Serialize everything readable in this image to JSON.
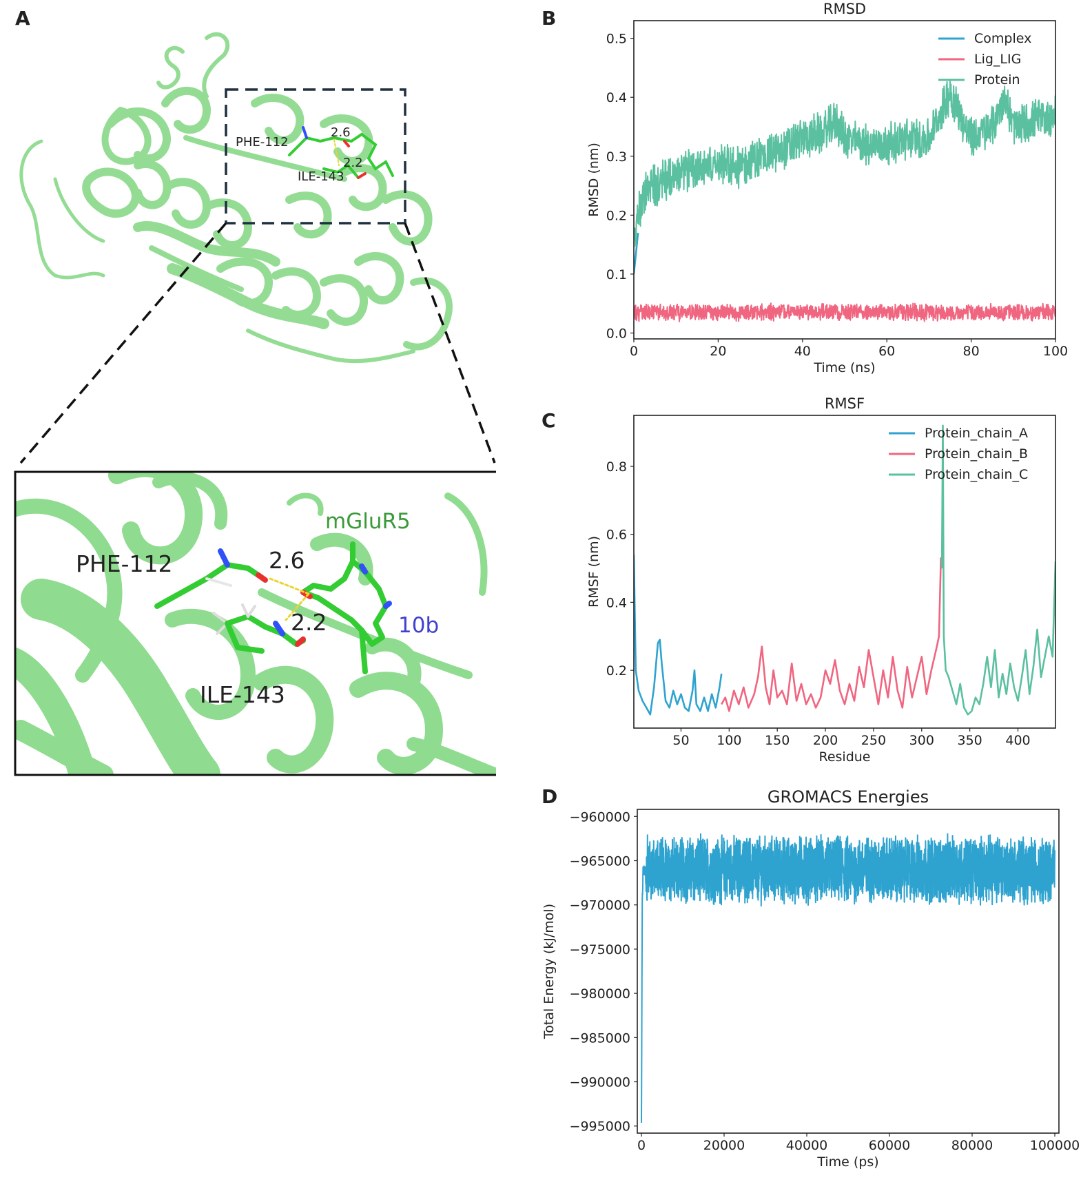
{
  "panels": {
    "a": "A",
    "b": "B",
    "c": "C",
    "d": "D"
  },
  "structure": {
    "overview_labels": {
      "res1": "PHE-112",
      "res2": "ILE-143",
      "d1": "2.6",
      "d2": "2.2"
    },
    "zoom_labels": {
      "res1": "PHE-112",
      "res2": "ILE-143",
      "d1": "2.6",
      "d2": "2.2",
      "protein": "mGluR5",
      "ligand": "10b"
    },
    "colors": {
      "cartoon": "#8fdb8f",
      "stick": "#33cc33",
      "nitrogen": "#3050f8",
      "oxygen": "#e8312f",
      "hbond": "#e8d630",
      "protein_label": "#3a9a3a",
      "ligand_label": "#4040d0"
    }
  },
  "chart_data": [
    {
      "id": "rmsd",
      "type": "line",
      "title": "RMSD",
      "xlabel": "Time (ns)",
      "ylabel": "RMSD (nm)",
      "xlim": [
        0,
        100
      ],
      "ylim": [
        -0.01,
        0.53
      ],
      "xticks": [
        0,
        20,
        40,
        60,
        80,
        100
      ],
      "yticks": [
        0.0,
        0.1,
        0.2,
        0.3,
        0.4,
        0.5
      ],
      "xtick_labels": [
        "0",
        "20",
        "40",
        "60",
        "80",
        "100"
      ],
      "ytick_labels": [
        "0.0",
        "0.1",
        "0.2",
        "0.3",
        "0.4",
        "0.5"
      ],
      "legend_position": "top-right",
      "legend": [
        {
          "name": "Complex",
          "color": "#2ea3cf"
        },
        {
          "name": "Lig_LIG",
          "color": "#f0657f"
        },
        {
          "name": "Protein",
          "color": "#5bc0a0"
        }
      ],
      "series": [
        {
          "name": "Complex",
          "color": "#2ea3cf",
          "x": [
            0,
            1
          ],
          "y": [
            0.1,
            0.17
          ]
        },
        {
          "name": "Protein",
          "color": "#5bc0a0",
          "x": [
            0,
            1,
            3,
            5,
            8,
            10,
            15,
            20,
            25,
            30,
            35,
            40,
            45,
            48,
            50,
            55,
            60,
            65,
            70,
            72,
            75,
            78,
            80,
            85,
            88,
            90,
            95,
            100
          ],
          "y": [
            0.15,
            0.2,
            0.24,
            0.25,
            0.26,
            0.27,
            0.28,
            0.29,
            0.28,
            0.3,
            0.31,
            0.33,
            0.34,
            0.36,
            0.33,
            0.32,
            0.32,
            0.33,
            0.33,
            0.36,
            0.41,
            0.36,
            0.33,
            0.35,
            0.4,
            0.35,
            0.36,
            0.37
          ],
          "noise": 0.03
        },
        {
          "name": "Lig_LIG",
          "color": "#f0657f",
          "x": [
            0,
            25,
            50,
            75,
            100
          ],
          "y": [
            0.035,
            0.035,
            0.036,
            0.035,
            0.035
          ],
          "noise": 0.012
        }
      ]
    },
    {
      "id": "rmsf",
      "type": "line",
      "title": "RMSF",
      "xlabel": "Residue",
      "ylabel": "RMSF (nm)",
      "xlim": [
        1,
        439
      ],
      "ylim": [
        0.03,
        0.95
      ],
      "xticks": [
        50,
        100,
        150,
        200,
        250,
        300,
        350,
        400
      ],
      "yticks": [
        0.2,
        0.4,
        0.6,
        0.8
      ],
      "xtick_labels": [
        "50",
        "100",
        "150",
        "200",
        "250",
        "300",
        "350",
        "400"
      ],
      "ytick_labels": [
        "0.2",
        "0.4",
        "0.6",
        "0.8"
      ],
      "legend_position": "top-right",
      "legend": [
        {
          "name": "Protein_chain_A",
          "color": "#2ea3cf"
        },
        {
          "name": "Protein_chain_B",
          "color": "#f0657f"
        },
        {
          "name": "Protein_chain_C",
          "color": "#5bc0a0"
        }
      ],
      "series": [
        {
          "name": "Protein_chain_A",
          "color": "#2ea3cf",
          "x": [
            1,
            3,
            6,
            10,
            14,
            18,
            22,
            26,
            28,
            30,
            34,
            38,
            42,
            46,
            50,
            54,
            58,
            62,
            64,
            66,
            70,
            74,
            78,
            82,
            86,
            90,
            92
          ],
          "y": [
            0.54,
            0.2,
            0.14,
            0.11,
            0.09,
            0.07,
            0.15,
            0.28,
            0.29,
            0.22,
            0.11,
            0.09,
            0.14,
            0.1,
            0.13,
            0.09,
            0.08,
            0.14,
            0.2,
            0.1,
            0.08,
            0.12,
            0.08,
            0.13,
            0.09,
            0.15,
            0.19
          ]
        },
        {
          "name": "Protein_chain_B",
          "color": "#f0657f",
          "x": [
            92,
            96,
            100,
            105,
            110,
            115,
            120,
            126,
            130,
            134,
            138,
            142,
            146,
            150,
            155,
            160,
            165,
            170,
            175,
            180,
            185,
            190,
            195,
            200,
            205,
            210,
            215,
            220,
            225,
            230,
            235,
            240,
            245,
            250,
            255,
            260,
            265,
            270,
            275,
            280,
            285,
            290,
            295,
            300,
            305,
            310,
            315,
            318,
            320,
            321
          ],
          "y": [
            0.1,
            0.12,
            0.08,
            0.14,
            0.1,
            0.15,
            0.09,
            0.13,
            0.18,
            0.27,
            0.15,
            0.1,
            0.2,
            0.12,
            0.14,
            0.1,
            0.22,
            0.11,
            0.16,
            0.1,
            0.13,
            0.09,
            0.12,
            0.2,
            0.16,
            0.23,
            0.14,
            0.1,
            0.16,
            0.11,
            0.21,
            0.15,
            0.26,
            0.18,
            0.1,
            0.2,
            0.12,
            0.24,
            0.14,
            0.09,
            0.21,
            0.12,
            0.18,
            0.24,
            0.13,
            0.2,
            0.26,
            0.3,
            0.53,
            0.5
          ]
        },
        {
          "name": "Protein_chain_C",
          "color": "#5bc0a0",
          "x": [
            321,
            322,
            323,
            325,
            328,
            332,
            336,
            340,
            344,
            348,
            352,
            356,
            360,
            364,
            368,
            372,
            376,
            380,
            384,
            388,
            392,
            396,
            400,
            404,
            408,
            412,
            416,
            420,
            424,
            428,
            432,
            436,
            439
          ],
          "y": [
            0.5,
            0.92,
            0.3,
            0.2,
            0.18,
            0.14,
            0.1,
            0.16,
            0.09,
            0.07,
            0.08,
            0.12,
            0.1,
            0.16,
            0.24,
            0.15,
            0.26,
            0.12,
            0.19,
            0.13,
            0.22,
            0.15,
            0.11,
            0.18,
            0.26,
            0.13,
            0.21,
            0.32,
            0.18,
            0.24,
            0.3,
            0.24,
            0.52
          ]
        }
      ]
    },
    {
      "id": "energy",
      "type": "line",
      "title": "GROMACS Energies",
      "xlabel": "Time (ps)",
      "ylabel": "Total Energy (kJ/mol)",
      "xlim": [
        -1000,
        101000
      ],
      "ylim": [
        -995800,
        -959200
      ],
      "xticks": [
        0,
        20000,
        40000,
        60000,
        80000,
        100000
      ],
      "yticks": [
        -960000,
        -965000,
        -970000,
        -975000,
        -980000,
        -985000,
        -990000,
        -995000
      ],
      "xtick_labels": [
        "0",
        "20000",
        "40000",
        "60000",
        "80000",
        "100000"
      ],
      "ytick_labels": [
        "−960000",
        "−965000",
        "−970000",
        "−975000",
        "−980000",
        "−985000",
        "−990000",
        "−995000"
      ],
      "series": [
        {
          "name": "Total Energy",
          "color": "#2ea3cf",
          "x": [
            0,
            200,
            400,
            700,
            1000,
            50000,
            100000
          ],
          "y": [
            -994600,
            -970000,
            -966000,
            -966000,
            -966000,
            -966000,
            -966000
          ],
          "noise": 3200
        }
      ]
    }
  ]
}
